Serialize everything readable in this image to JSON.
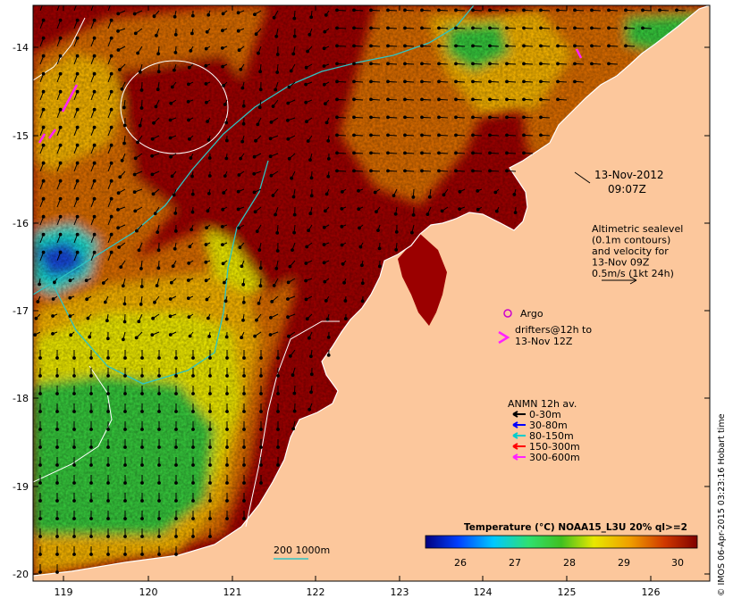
{
  "map": {
    "lon_ticks": [
      "119",
      "120",
      "121",
      "122",
      "123",
      "124",
      "125",
      "126"
    ],
    "lat_ticks": [
      "-14",
      "-15",
      "-16",
      "-17",
      "-18",
      "-19",
      "-20"
    ],
    "colors": {
      "land": "#fcc79c",
      "hot": "#9b0000",
      "warm": "#d66a00",
      "amber": "#f0b000",
      "yellow": "#e8e400",
      "green": "#35c43a",
      "cyan": "#19d8c8",
      "blue": "#1444d2",
      "coast": "#ffffff",
      "contour_1000": "#2ec4c4",
      "drifter": "#ff22ff",
      "argo": "#cc00cc"
    }
  },
  "annotations": {
    "date": "13-Nov-2012",
    "time": "09:07Z",
    "altimetry": [
      "Altimetric sealevel",
      "(0.1m contours)",
      "and velocity for",
      "13-Nov 09Z",
      "0.5m/s (1kt 24h)"
    ],
    "argo_label": "Argo",
    "drifter_label": [
      "drifters@12h to",
      "13-Nov 12Z"
    ],
    "anmn_title": "ANMN 12h av.",
    "anmn_legend": [
      {
        "label": "0-30m",
        "color": "#000000"
      },
      {
        "label": "30-80m",
        "color": "#0000ff"
      },
      {
        "label": "80-150m",
        "color": "#00cccc"
      },
      {
        "label": "150-300m",
        "color": "#ff0000"
      },
      {
        "label": "300-600m",
        "color": "#ff22ff"
      }
    ],
    "isobath_label": "200  1000m"
  },
  "colorbar": {
    "title": "Temperature (°C) NOAA15_L3U 20% ql>=2",
    "ticks": [
      "26",
      "27",
      "28",
      "29",
      "30"
    ]
  },
  "credit": "© IMOS 06-Apr-2015 03:23:16 Hobart time"
}
